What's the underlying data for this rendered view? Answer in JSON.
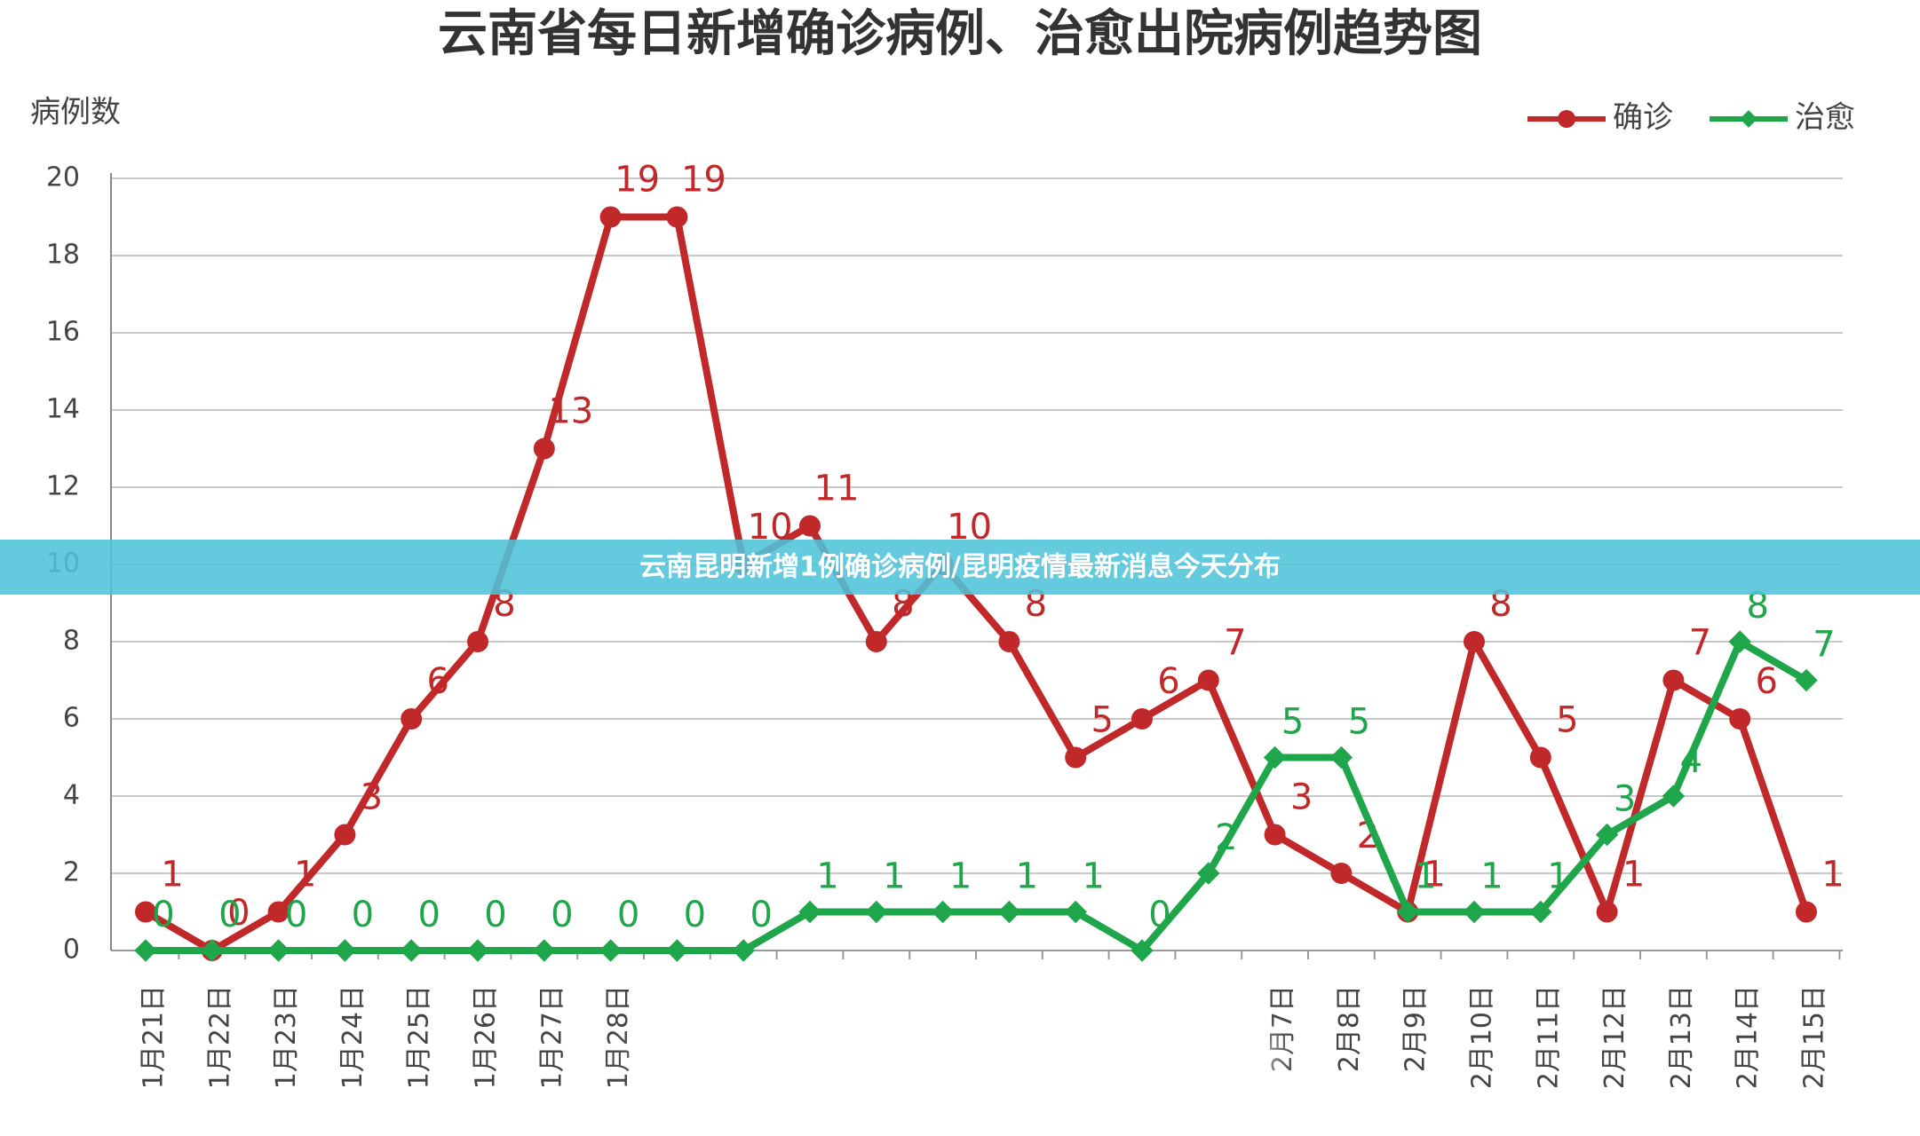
{
  "chart_data": {
    "type": "line",
    "title": "云南省每日新增确诊病例、治愈出院病例趋势图",
    "y_label": "病例数",
    "categories": [
      "1月21日",
      "1月22日",
      "1月23日",
      "1月24日",
      "1月25日",
      "1月26日",
      "1月27日",
      "1月28日",
      null,
      null,
      null,
      null,
      null,
      null,
      null,
      null,
      null,
      "2月7日",
      "2月8日",
      "2月9日",
      "2月10日",
      "2月11日",
      "2月12日",
      "2月13日",
      "2月14日",
      "2月15日"
    ],
    "series": [
      {
        "name": "确诊",
        "color": "#c0282a",
        "values": [
          1,
          0,
          1,
          3,
          6,
          8,
          13,
          19,
          19,
          10,
          11,
          8,
          10,
          8,
          5,
          6,
          7,
          3,
          2,
          1,
          8,
          5,
          1,
          7,
          6,
          1
        ]
      },
      {
        "name": "治愈",
        "color": "#1fa64a",
        "values": [
          0,
          0,
          0,
          0,
          0,
          0,
          0,
          0,
          0,
          0,
          1,
          1,
          1,
          1,
          1,
          0,
          2,
          5,
          5,
          1,
          1,
          1,
          3,
          4,
          8,
          7
        ]
      }
    ],
    "ylim": [
      0,
      20
    ],
    "yticks": [
      0,
      2,
      4,
      6,
      8,
      10,
      12,
      14,
      16,
      18,
      20
    ],
    "grid": true,
    "legend": "top-right"
  },
  "banner": {
    "text": "云南昆明新增1例确诊病例/昆明疫情最新消息今天分布"
  }
}
